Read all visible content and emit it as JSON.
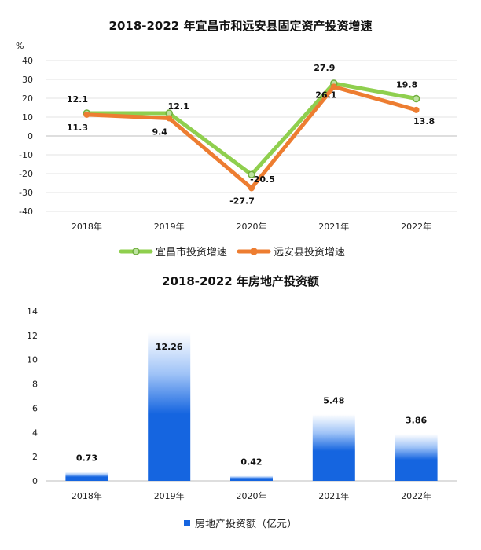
{
  "chart_data": [
    {
      "type": "line",
      "title": "2018-2022 年宜昌市和远安县固定资产投资增速",
      "ylabel": "%",
      "xlabel": "",
      "categories": [
        "2018年",
        "2019年",
        "2020年",
        "2021年",
        "2022年"
      ],
      "ylim": [
        -40,
        40
      ],
      "yticks": [
        40,
        30,
        20,
        10,
        0,
        -10,
        -20,
        -30,
        -40
      ],
      "legend_position": "bottom",
      "grid": true,
      "series": [
        {
          "name": "宜昌市投资增速",
          "color": "#8fcf4e",
          "values": [
            12.1,
            12.1,
            -20.5,
            27.9,
            19.8
          ],
          "labels": [
            "12.1",
            "12.1",
            "-20.5",
            "27.9",
            "19.8"
          ]
        },
        {
          "name": "远安县投资增速",
          "color": "#ed7d31",
          "values": [
            11.3,
            9.4,
            -27.7,
            26.1,
            13.8
          ],
          "labels": [
            "11.3",
            "9.4",
            "-27.7",
            "26.1",
            "13.8"
          ]
        }
      ]
    },
    {
      "type": "bar",
      "title": "2018-2022 年房地产投资额",
      "xlabel": "",
      "ylabel": "",
      "categories": [
        "2018年",
        "2019年",
        "2020年",
        "2021年",
        "2022年"
      ],
      "ylim": [
        0,
        14
      ],
      "yticks": [
        14,
        12,
        10,
        8,
        6,
        4,
        2,
        0
      ],
      "legend_position": "bottom",
      "grid": false,
      "series": [
        {
          "name": "房地产投资额（亿元）",
          "color": "#1565e0",
          "values": [
            0.73,
            12.26,
            0.42,
            5.48,
            3.86
          ],
          "labels": [
            "0.73",
            "12.26",
            "0.42",
            "5.48",
            "3.86"
          ]
        }
      ]
    }
  ]
}
